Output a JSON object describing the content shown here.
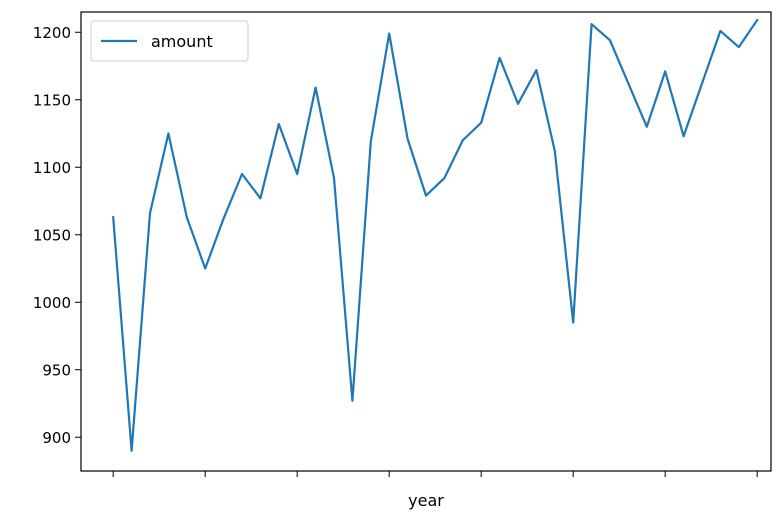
{
  "chart_data": {
    "type": "line",
    "title": "",
    "xlabel": "year",
    "ylabel": "",
    "x": [
      0,
      1,
      2,
      3,
      4,
      5,
      6,
      7,
      8,
      9,
      10,
      11,
      12,
      13,
      14,
      15,
      16,
      17,
      18,
      19,
      20,
      21,
      22,
      23,
      24,
      25,
      26,
      27,
      28,
      29,
      30,
      31,
      32,
      33,
      34,
      35
    ],
    "series": [
      {
        "name": "amount",
        "color": "#1f77b4",
        "values": [
          1063,
          890,
          1066,
          1125,
          1063,
          1025,
          1062,
          1095,
          1077,
          1132,
          1095,
          1159,
          1092,
          927,
          1119,
          1199,
          1121,
          1079,
          1092,
          1120,
          1133,
          1181,
          1147,
          1172,
          1112,
          985,
          1206,
          1194,
          1162,
          1130,
          1171,
          1123,
          1162,
          1201,
          1189,
          1209
        ]
      }
    ],
    "ylim": [
      875,
      1215
    ],
    "xlim": [
      -1.75,
      35.75
    ],
    "yticks": [
      900,
      950,
      1000,
      1050,
      1100,
      1150,
      1200
    ],
    "ytick_labels": [
      "900",
      "950",
      "1000",
      "1050",
      "1100",
      "1150",
      "1200"
    ],
    "xticks": [
      0,
      5,
      10,
      15,
      20,
      25,
      30,
      35
    ],
    "xtick_labels": [
      "",
      "",
      "",
      "",
      "",
      "",
      "",
      ""
    ],
    "legend": {
      "position": "top-left",
      "entries": [
        "amount"
      ]
    },
    "grid": false
  }
}
